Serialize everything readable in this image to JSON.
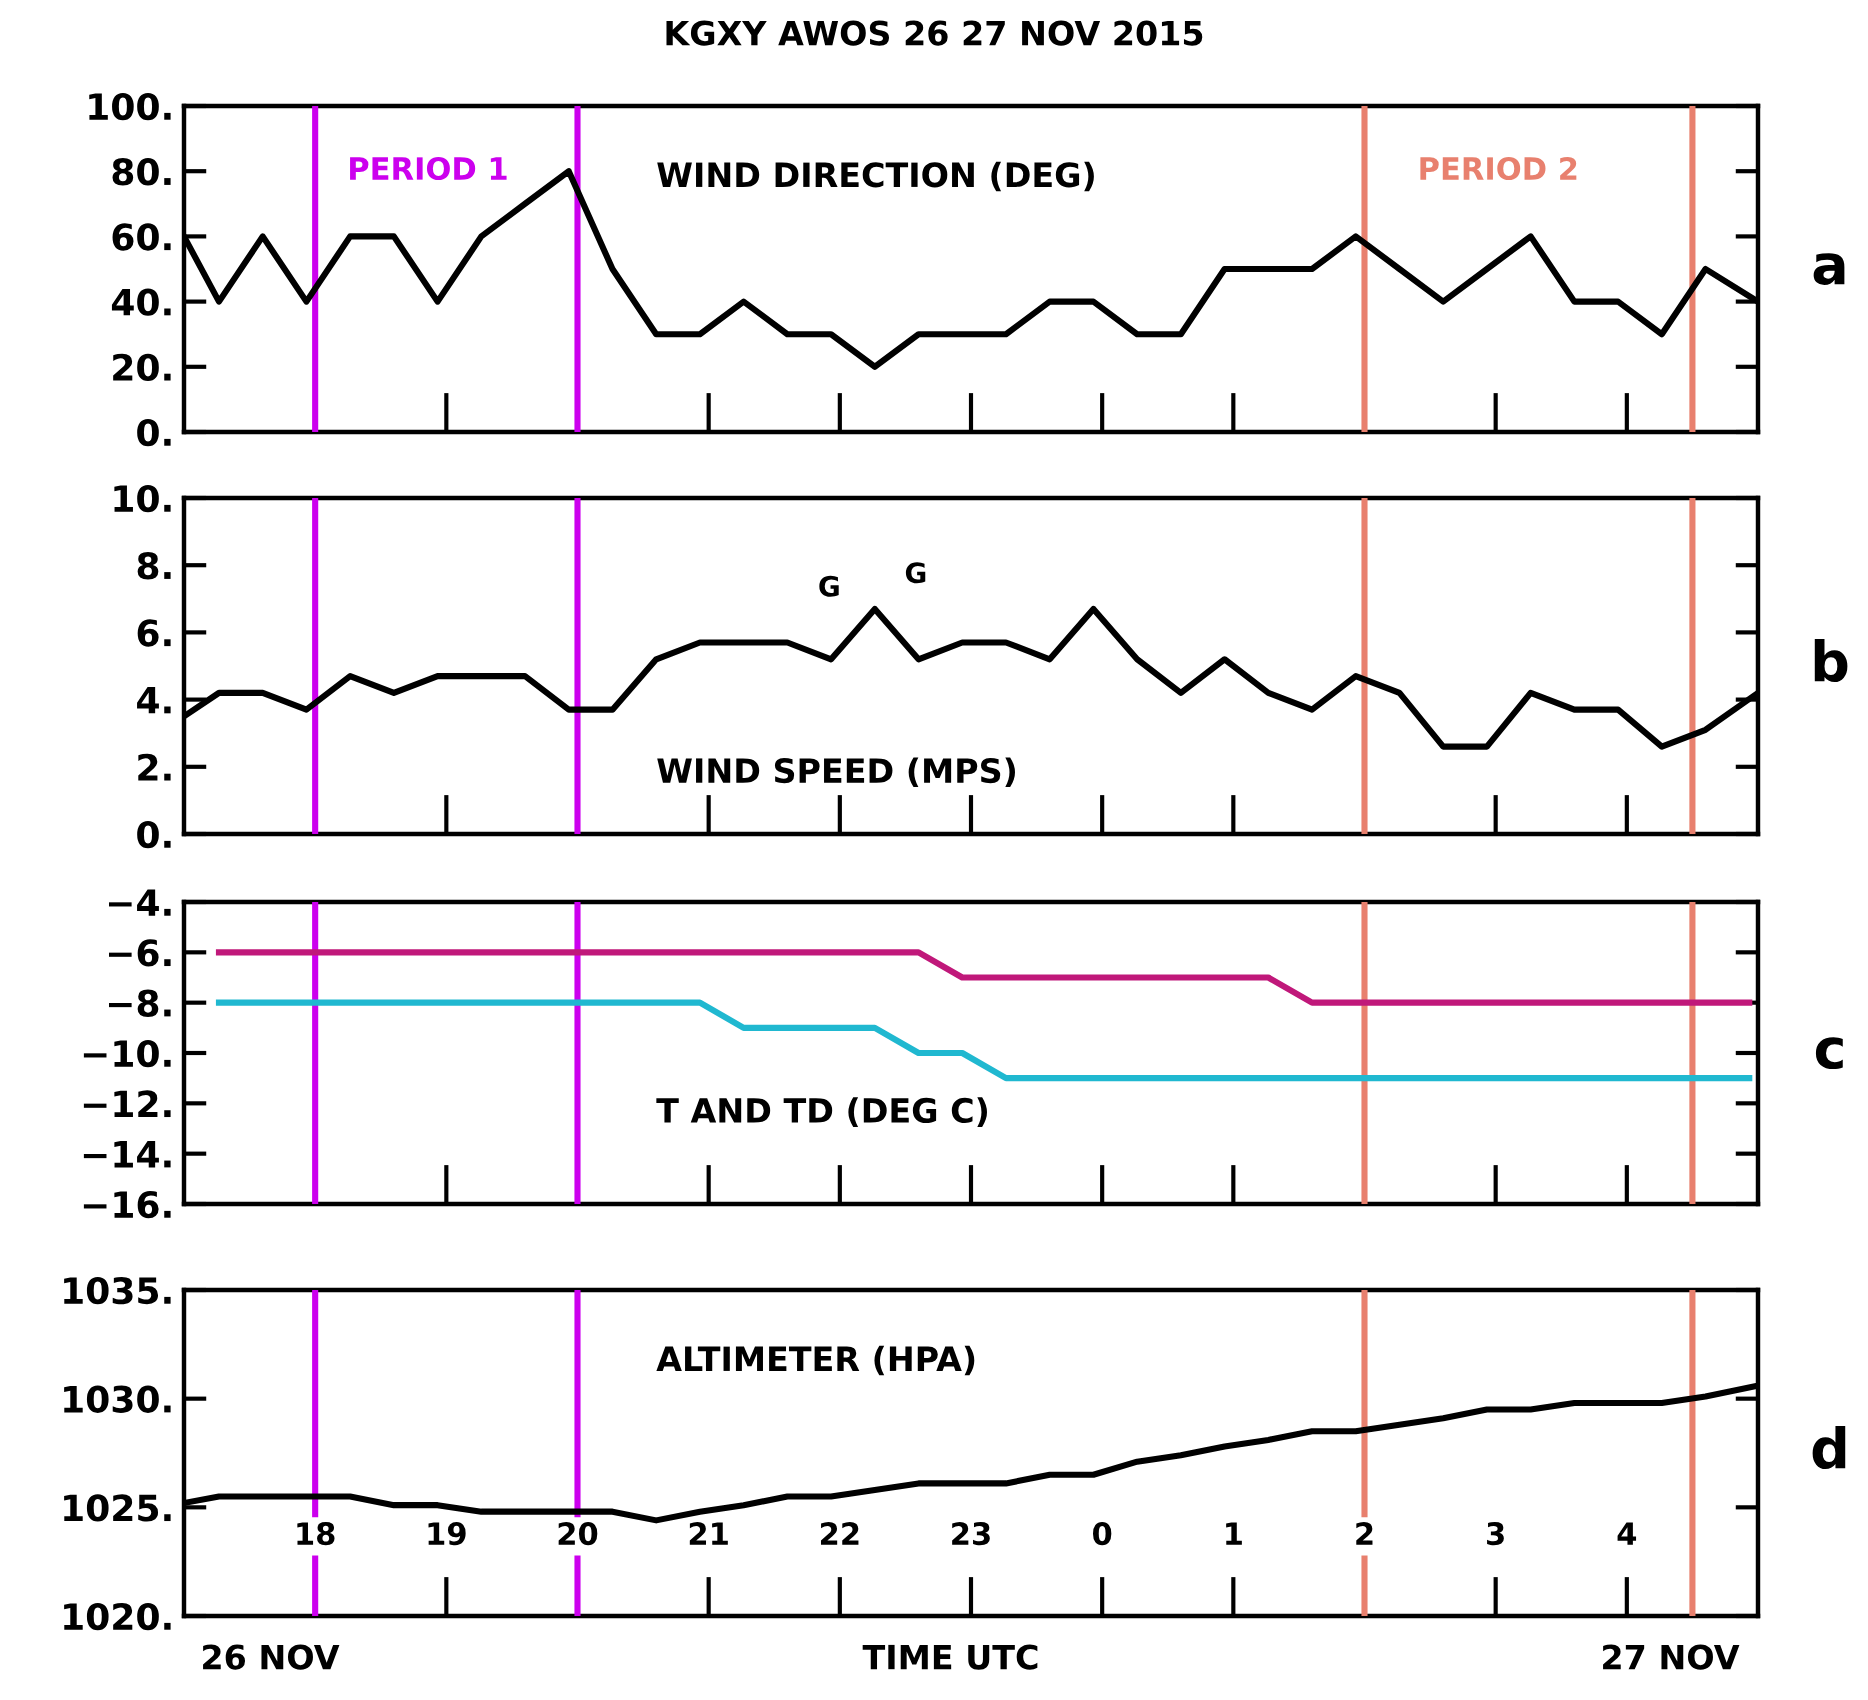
{
  "chart_data": [
    {
      "type": "line",
      "title": "KGXY AWOS 26 27 NOV 2015",
      "annotations": [
        "WIND DIRECTION (DEG)",
        "a",
        "PERIOD 1",
        "PERIOD 2"
      ],
      "x": [
        "2015-11-26T17:00",
        "2015-11-26T17:16",
        "2015-11-26T17:36",
        "2015-11-26T17:56",
        "2015-11-26T18:16",
        "2015-11-26T18:36",
        "2015-11-26T18:56",
        "2015-11-26T19:16",
        "2015-11-26T19:36",
        "2015-11-26T19:56",
        "2015-11-26T20:16",
        "2015-11-26T20:36",
        "2015-11-26T20:56",
        "2015-11-26T21:16",
        "2015-11-26T21:36",
        "2015-11-26T21:56",
        "2015-11-26T22:16",
        "2015-11-26T22:36",
        "2015-11-26T22:56",
        "2015-11-26T23:16",
        "2015-11-26T23:36",
        "2015-11-26T23:56",
        "2015-11-27T00:16",
        "2015-11-27T00:36",
        "2015-11-27T00:56",
        "2015-11-27T01:16",
        "2015-11-27T01:36",
        "2015-11-27T01:56",
        "2015-11-27T02:16",
        "2015-11-27T02:36",
        "2015-11-27T02:56",
        "2015-11-27T03:16",
        "2015-11-27T03:36",
        "2015-11-27T03:56",
        "2015-11-27T04:16",
        "2015-11-27T04:36",
        "2015-11-27T05:00"
      ],
      "series": [
        {
          "color": "#000000",
          "values": [
            60,
            40,
            60,
            40,
            60,
            60,
            40,
            60,
            70,
            80,
            50,
            30,
            30,
            40,
            30,
            30,
            20,
            30,
            30,
            30,
            40,
            40,
            30,
            30,
            50,
            50,
            50,
            60,
            50,
            40,
            50,
            60,
            40,
            40,
            30,
            50,
            40
          ]
        }
      ],
      "xlim": [
        "2015-11-26T17:00",
        "2015-11-27T05:00"
      ],
      "xticks": [
        {
          "value": "2015-11-26T18:00",
          "label": null
        },
        {
          "value": "2015-11-26T19:00",
          "label": null
        },
        {
          "value": "2015-11-26T20:00",
          "label": null
        },
        {
          "value": "2015-11-26T21:00",
          "label": null
        },
        {
          "value": "2015-11-26T22:00",
          "label": null
        },
        {
          "value": "2015-11-26T23:00",
          "label": null
        },
        {
          "value": "2015-11-27T00:00",
          "label": null
        },
        {
          "value": "2015-11-27T01:00",
          "label": null
        },
        {
          "value": "2015-11-27T02:00",
          "label": null
        },
        {
          "value": "2015-11-27T03:00",
          "label": null
        },
        {
          "value": "2015-11-27T04:00",
          "label": null
        }
      ],
      "ylim": [
        0,
        100
      ],
      "yticks": [
        {
          "value": 0,
          "label": "0."
        },
        {
          "value": 20,
          "label": "20."
        },
        {
          "value": 40,
          "label": "40."
        },
        {
          "value": 60,
          "label": "60."
        },
        {
          "value": 80,
          "label": "80."
        },
        {
          "value": 100,
          "label": "100."
        }
      ],
      "ref_lines": [
        {
          "axis": "x",
          "value": "2015-11-26T18:00",
          "color": "#cc00ee"
        },
        {
          "axis": "x",
          "value": "2015-11-26T20:00",
          "color": "#cc00ee"
        },
        {
          "axis": "x",
          "value": "2015-11-27T02:00",
          "color": "#e8806e"
        },
        {
          "axis": "x",
          "value": "2015-11-27T04:30",
          "color": "#e8806e"
        }
      ],
      "tick_labels": "y",
      "grid": false,
      "legend": false
    },
    {
      "type": "line",
      "annotations": [
        "WIND SPEED (MPS)",
        "b",
        "G",
        "G"
      ],
      "x": [
        "2015-11-26T17:00",
        "2015-11-26T17:16",
        "2015-11-26T17:36",
        "2015-11-26T17:56",
        "2015-11-26T18:16",
        "2015-11-26T18:36",
        "2015-11-26T18:56",
        "2015-11-26T19:16",
        "2015-11-26T19:36",
        "2015-11-26T19:56",
        "2015-11-26T20:16",
        "2015-11-26T20:36",
        "2015-11-26T20:56",
        "2015-11-26T21:16",
        "2015-11-26T21:36",
        "2015-11-26T21:56",
        "2015-11-26T22:16",
        "2015-11-26T22:36",
        "2015-11-26T22:56",
        "2015-11-26T23:16",
        "2015-11-26T23:36",
        "2015-11-26T23:56",
        "2015-11-27T00:16",
        "2015-11-27T00:36",
        "2015-11-27T00:56",
        "2015-11-27T01:16",
        "2015-11-27T01:36",
        "2015-11-27T01:56",
        "2015-11-27T02:16",
        "2015-11-27T02:36",
        "2015-11-27T02:56",
        "2015-11-27T03:16",
        "2015-11-27T03:36",
        "2015-11-27T03:56",
        "2015-11-27T04:16",
        "2015-11-27T04:36",
        "2015-11-27T05:00"
      ],
      "series": [
        {
          "color": "#000000",
          "values": [
            3.5,
            4.2,
            4.2,
            3.7,
            4.7,
            4.2,
            4.7,
            4.7,
            4.7,
            3.7,
            3.7,
            5.2,
            5.7,
            5.7,
            5.7,
            5.2,
            6.7,
            5.2,
            5.7,
            5.7,
            5.2,
            6.7,
            5.2,
            4.2,
            5.2,
            4.2,
            3.7,
            4.7,
            4.2,
            2.6,
            2.6,
            4.2,
            3.7,
            3.7,
            2.6,
            3.1,
            4.2
          ]
        }
      ],
      "xlim": [
        "2015-11-26T17:00",
        "2015-11-27T05:00"
      ],
      "xticks": [
        {
          "value": "2015-11-26T18:00",
          "label": null
        },
        {
          "value": "2015-11-26T19:00",
          "label": null
        },
        {
          "value": "2015-11-26T20:00",
          "label": null
        },
        {
          "value": "2015-11-26T21:00",
          "label": null
        },
        {
          "value": "2015-11-26T22:00",
          "label": null
        },
        {
          "value": "2015-11-26T23:00",
          "label": null
        },
        {
          "value": "2015-11-27T00:00",
          "label": null
        },
        {
          "value": "2015-11-27T01:00",
          "label": null
        },
        {
          "value": "2015-11-27T02:00",
          "label": null
        },
        {
          "value": "2015-11-27T03:00",
          "label": null
        },
        {
          "value": "2015-11-27T04:00",
          "label": null
        }
      ],
      "ylim": [
        0,
        10
      ],
      "yticks": [
        {
          "value": 0,
          "label": "0."
        },
        {
          "value": 2,
          "label": "2."
        },
        {
          "value": 4,
          "label": "4."
        },
        {
          "value": 6,
          "label": "6."
        },
        {
          "value": 8,
          "label": "8."
        },
        {
          "value": 10,
          "label": "10."
        }
      ],
      "ref_lines": [
        {
          "axis": "x",
          "value": "2015-11-26T18:00",
          "color": "#cc00ee"
        },
        {
          "axis": "x",
          "value": "2015-11-26T20:00",
          "color": "#cc00ee"
        },
        {
          "axis": "x",
          "value": "2015-11-27T02:00",
          "color": "#e8806e"
        },
        {
          "axis": "x",
          "value": "2015-11-27T04:30",
          "color": "#e8806e"
        }
      ],
      "tick_labels": "y",
      "grid": false,
      "legend": false
    },
    {
      "type": "line",
      "annotations": [
        "T AND TD (DEG C)",
        "c"
      ],
      "series": [
        {
          "color": "#c0187a",
          "x": [
            "2015-11-26T17:16",
            "2015-11-26T22:36",
            "2015-11-26T22:56",
            "2015-11-27T01:16",
            "2015-11-27T01:36",
            "2015-11-27T04:56"
          ],
          "values": [
            -6,
            -6,
            -7,
            -7,
            -8,
            -8
          ]
        },
        {
          "color": "#20b8d0",
          "x": [
            "2015-11-26T17:16",
            "2015-11-26T20:56",
            "2015-11-26T21:16",
            "2015-11-26T22:16",
            "2015-11-26T22:36",
            "2015-11-26T22:56",
            "2015-11-26T23:16",
            "2015-11-27T04:56"
          ],
          "values": [
            -8,
            -8,
            -9,
            -9,
            -10,
            -10,
            -11,
            -11
          ]
        }
      ],
      "xlim": [
        "2015-11-26T17:00",
        "2015-11-27T05:00"
      ],
      "xticks": [
        {
          "value": "2015-11-26T18:00",
          "label": null
        },
        {
          "value": "2015-11-26T19:00",
          "label": null
        },
        {
          "value": "2015-11-26T20:00",
          "label": null
        },
        {
          "value": "2015-11-26T21:00",
          "label": null
        },
        {
          "value": "2015-11-26T22:00",
          "label": null
        },
        {
          "value": "2015-11-26T23:00",
          "label": null
        },
        {
          "value": "2015-11-27T00:00",
          "label": null
        },
        {
          "value": "2015-11-27T01:00",
          "label": null
        },
        {
          "value": "2015-11-27T02:00",
          "label": null
        },
        {
          "value": "2015-11-27T03:00",
          "label": null
        },
        {
          "value": "2015-11-27T04:00",
          "label": null
        }
      ],
      "ylim": [
        -16,
        -4
      ],
      "yticks": [
        {
          "value": -16,
          "label": "−16."
        },
        {
          "value": -14,
          "label": "−14."
        },
        {
          "value": -12,
          "label": "−12."
        },
        {
          "value": -10,
          "label": "−10."
        },
        {
          "value": -8,
          "label": "−8."
        },
        {
          "value": -6,
          "label": "−6."
        },
        {
          "value": -4,
          "label": "−4."
        }
      ],
      "ref_lines": [
        {
          "axis": "x",
          "value": "2015-11-26T18:00",
          "color": "#cc00ee"
        },
        {
          "axis": "x",
          "value": "2015-11-26T20:00",
          "color": "#cc00ee"
        },
        {
          "axis": "x",
          "value": "2015-11-27T02:00",
          "color": "#e8806e"
        },
        {
          "axis": "x",
          "value": "2015-11-27T04:30",
          "color": "#e8806e"
        }
      ],
      "tick_labels": "y",
      "grid": false,
      "legend": false
    },
    {
      "type": "line",
      "xlabel": "TIME UTC",
      "annotations": [
        "ALTIMETER (HPA)",
        "d",
        "26 NOV",
        "27 NOV"
      ],
      "x": [
        "2015-11-26T17:00",
        "2015-11-26T17:16",
        "2015-11-26T17:36",
        "2015-11-26T17:56",
        "2015-11-26T18:16",
        "2015-11-26T18:36",
        "2015-11-26T18:56",
        "2015-11-26T19:16",
        "2015-11-26T19:36",
        "2015-11-26T19:56",
        "2015-11-26T20:16",
        "2015-11-26T20:36",
        "2015-11-26T20:56",
        "2015-11-26T21:16",
        "2015-11-26T21:36",
        "2015-11-26T21:56",
        "2015-11-26T22:16",
        "2015-11-26T22:36",
        "2015-11-26T22:56",
        "2015-11-26T23:16",
        "2015-11-26T23:36",
        "2015-11-26T23:56",
        "2015-11-27T00:16",
        "2015-11-27T00:36",
        "2015-11-27T00:56",
        "2015-11-27T01:16",
        "2015-11-27T01:36",
        "2015-11-27T01:56",
        "2015-11-27T02:16",
        "2015-11-27T02:36",
        "2015-11-27T02:56",
        "2015-11-27T03:16",
        "2015-11-27T03:36",
        "2015-11-27T03:56",
        "2015-11-27T04:16",
        "2015-11-27T04:36",
        "2015-11-27T05:00"
      ],
      "series": [
        {
          "color": "#000000",
          "values": [
            1025.2,
            1025.5,
            1025.5,
            1025.5,
            1025.5,
            1025.1,
            1025.1,
            1024.8,
            1024.8,
            1024.8,
            1024.8,
            1024.4,
            1024.8,
            1025.1,
            1025.5,
            1025.5,
            1025.8,
            1026.1,
            1026.1,
            1026.1,
            1026.5,
            1026.5,
            1027.1,
            1027.4,
            1027.8,
            1028.1,
            1028.5,
            1028.5,
            1028.8,
            1029.1,
            1029.5,
            1029.5,
            1029.8,
            1029.8,
            1029.8,
            1030.1,
            1030.6
          ]
        }
      ],
      "xlim": [
        "2015-11-26T17:00",
        "2015-11-27T05:00"
      ],
      "xticks": [
        {
          "value": "2015-11-26T18:00",
          "label": "18"
        },
        {
          "value": "2015-11-26T19:00",
          "label": "19"
        },
        {
          "value": "2015-11-26T20:00",
          "label": "20"
        },
        {
          "value": "2015-11-26T21:00",
          "label": "21"
        },
        {
          "value": "2015-11-26T22:00",
          "label": "22"
        },
        {
          "value": "2015-11-26T23:00",
          "label": "23"
        },
        {
          "value": "2015-11-27T00:00",
          "label": "0"
        },
        {
          "value": "2015-11-27T01:00",
          "label": "1"
        },
        {
          "value": "2015-11-27T02:00",
          "label": "2"
        },
        {
          "value": "2015-11-27T03:00",
          "label": "3"
        },
        {
          "value": "2015-11-27T04:00",
          "label": "4"
        }
      ],
      "ylim": [
        1020,
        1035
      ],
      "yticks": [
        {
          "value": 1020,
          "label": "1020."
        },
        {
          "value": 1025,
          "label": "1025."
        },
        {
          "value": 1030,
          "label": "1030."
        },
        {
          "value": 1035,
          "label": "1035."
        }
      ],
      "ref_lines": [
        {
          "axis": "x",
          "value": "2015-11-26T18:00",
          "color": "#cc00ee"
        },
        {
          "axis": "x",
          "value": "2015-11-26T20:00",
          "color": "#cc00ee"
        },
        {
          "axis": "x",
          "value": "2015-11-27T02:00",
          "color": "#e8806e"
        },
        {
          "axis": "x",
          "value": "2015-11-27T04:30",
          "color": "#e8806e"
        }
      ],
      "grid": false,
      "legend": false
    }
  ]
}
